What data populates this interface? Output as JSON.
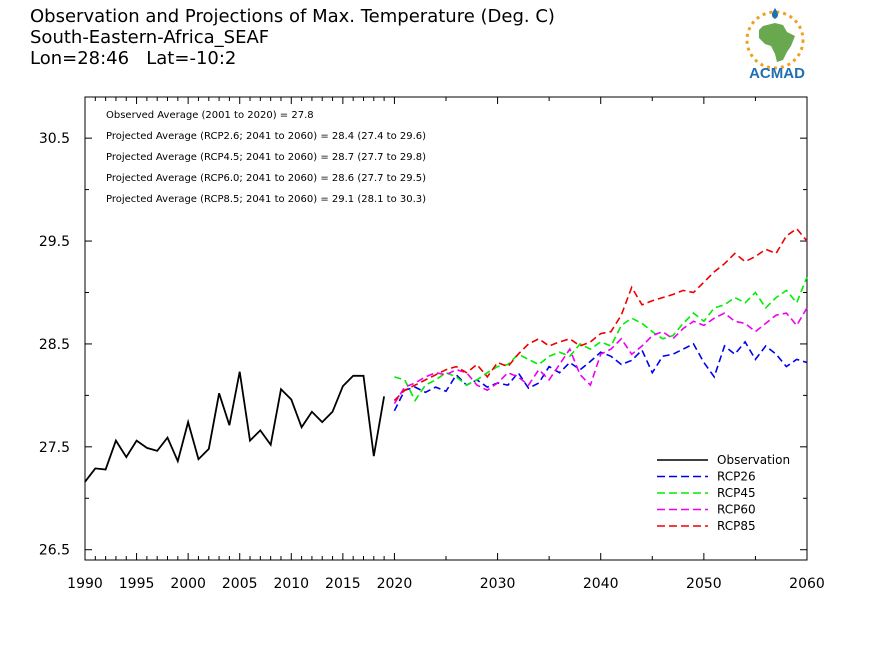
{
  "header": {
    "title": "Observation and Projections of Max. Temperature (Deg. C)",
    "region": "South-Eastern-Africa_SEAF",
    "location": "Lon=28:46   Lat=-10:2"
  },
  "logo": {
    "text": "ACMAD",
    "colors": {
      "africa": "#6aa84f",
      "sun": "#f0a020",
      "text": "#1f6fb2"
    }
  },
  "annotations": [
    "Observed Average (2001 to 2020) = 27.8",
    "Projected Average (RCP2.6; 2041 to 2060) = 28.4 (27.4 to 29.6)",
    "Projected Average (RCP4.5; 2041 to 2060) = 28.7 (27.7 to 29.8)",
    "Projected Average (RCP6.0; 2041 to 2060) = 28.6 (27.7 to 29.5)",
    "Projected Average (RCP8.5; 2041 to 2060) = 29.1 (28.1 to 30.3)"
  ],
  "chart_data": {
    "type": "line",
    "xlim": [
      1990,
      2060
    ],
    "ylim": [
      26.4,
      30.9
    ],
    "grid": false,
    "legend_position": "bottom-right",
    "x_ticks": [
      {
        "value": 1990,
        "label": "1990"
      },
      {
        "value": 1995,
        "label": "1995"
      },
      {
        "value": 2000,
        "label": "2000"
      },
      {
        "value": 2005,
        "label": "2005"
      },
      {
        "value": 2010,
        "label": "2010"
      },
      {
        "value": 2015,
        "label": "2015"
      },
      {
        "value": 2020,
        "label": "2020"
      },
      {
        "value": 2030,
        "label": "2030"
      },
      {
        "value": 2040,
        "label": "2040"
      },
      {
        "value": 2050,
        "label": "2050"
      },
      {
        "value": 2060,
        "label": "2060"
      }
    ],
    "y_ticks": [
      {
        "value": 26.5,
        "label": "26.5"
      },
      {
        "value": 27.5,
        "label": "27.5"
      },
      {
        "value": 28.5,
        "label": "28.5"
      },
      {
        "value": 29.5,
        "label": "29.5"
      },
      {
        "value": 30.5,
        "label": "30.5"
      }
    ],
    "series": [
      {
        "name": "Observation",
        "color": "#000000",
        "dashed": false,
        "x": [
          1990,
          1991,
          1992,
          1993,
          1994,
          1995,
          1996,
          1997,
          1998,
          1999,
          2000,
          2001,
          2002,
          2003,
          2004,
          2005,
          2006,
          2007,
          2008,
          2009,
          2010,
          2011,
          2012,
          2013,
          2014,
          2015,
          2016,
          2017,
          2018,
          2019
        ],
        "y": [
          27.16,
          27.29,
          27.28,
          27.56,
          27.4,
          27.56,
          27.49,
          27.46,
          27.59,
          27.36,
          27.74,
          27.38,
          27.48,
          28.02,
          27.71,
          28.23,
          27.56,
          27.66,
          27.52,
          28.06,
          27.96,
          27.69,
          27.84,
          27.74,
          27.84,
          28.09,
          28.19,
          28.19,
          27.41,
          27.99
        ]
      },
      {
        "name": "RCP26",
        "color": "#0000ee",
        "dashed": true,
        "x": [
          2020,
          2021,
          2022,
          2023,
          2024,
          2025,
          2026,
          2027,
          2028,
          2029,
          2030,
          2031,
          2032,
          2033,
          2034,
          2035,
          2036,
          2037,
          2038,
          2039,
          2040,
          2041,
          2042,
          2043,
          2044,
          2045,
          2046,
          2047,
          2048,
          2049,
          2050,
          2051,
          2052,
          2053,
          2054,
          2055,
          2056,
          2057,
          2058,
          2059,
          2060
        ],
        "y": [
          27.85,
          28.05,
          28.08,
          28.03,
          28.08,
          28.04,
          28.2,
          28.1,
          28.15,
          28.08,
          28.12,
          28.1,
          28.22,
          28.07,
          28.12,
          28.28,
          28.22,
          28.32,
          28.25,
          28.33,
          28.42,
          28.38,
          28.3,
          28.34,
          28.44,
          28.22,
          28.38,
          28.4,
          28.45,
          28.5,
          28.32,
          28.18,
          28.48,
          28.4,
          28.52,
          28.35,
          28.48,
          28.4,
          28.28,
          28.35,
          28.32
        ]
      },
      {
        "name": "RCP45",
        "color": "#00ee00",
        "dashed": true,
        "x": [
          2020,
          2021,
          2022,
          2023,
          2024,
          2025,
          2026,
          2027,
          2028,
          2029,
          2030,
          2031,
          2032,
          2033,
          2034,
          2035,
          2036,
          2037,
          2038,
          2039,
          2040,
          2041,
          2042,
          2043,
          2044,
          2045,
          2046,
          2047,
          2048,
          2049,
          2050,
          2051,
          2052,
          2053,
          2054,
          2055,
          2056,
          2057,
          2058,
          2059,
          2060
        ],
        "y": [
          28.18,
          28.15,
          27.95,
          28.1,
          28.15,
          28.22,
          28.18,
          28.1,
          28.15,
          28.22,
          28.28,
          28.3,
          28.4,
          28.35,
          28.3,
          28.38,
          28.42,
          28.38,
          28.5,
          28.45,
          28.52,
          28.48,
          28.68,
          28.75,
          28.7,
          28.62,
          28.55,
          28.58,
          28.7,
          28.8,
          28.72,
          28.85,
          28.88,
          28.95,
          28.9,
          29.0,
          28.85,
          28.95,
          29.02,
          28.9,
          29.15
        ]
      },
      {
        "name": "RCP60",
        "color": "#ee00ee",
        "dashed": true,
        "x": [
          2020,
          2021,
          2022,
          2023,
          2024,
          2025,
          2026,
          2027,
          2028,
          2029,
          2030,
          2031,
          2032,
          2033,
          2034,
          2035,
          2036,
          2037,
          2038,
          2039,
          2040,
          2041,
          2042,
          2043,
          2044,
          2045,
          2046,
          2047,
          2048,
          2049,
          2050,
          2051,
          2052,
          2053,
          2054,
          2055,
          2056,
          2057,
          2058,
          2059,
          2060
        ],
        "y": [
          27.92,
          28.08,
          28.12,
          28.18,
          28.22,
          28.2,
          28.25,
          28.22,
          28.1,
          28.05,
          28.12,
          28.22,
          28.18,
          28.1,
          28.25,
          28.15,
          28.3,
          28.45,
          28.2,
          28.1,
          28.4,
          28.45,
          28.55,
          28.4,
          28.48,
          28.58,
          28.62,
          28.55,
          28.65,
          28.72,
          28.68,
          28.75,
          28.8,
          28.72,
          28.7,
          28.62,
          28.7,
          28.78,
          28.8,
          28.68,
          28.85
        ]
      },
      {
        "name": "RCP85",
        "color": "#ee0000",
        "dashed": true,
        "x": [
          2020,
          2021,
          2022,
          2023,
          2024,
          2025,
          2026,
          2027,
          2028,
          2029,
          2030,
          2031,
          2032,
          2033,
          2034,
          2035,
          2036,
          2037,
          2038,
          2039,
          2040,
          2041,
          2042,
          2043,
          2044,
          2045,
          2046,
          2047,
          2048,
          2049,
          2050,
          2051,
          2052,
          2053,
          2054,
          2055,
          2056,
          2057,
          2058,
          2059,
          2060
        ],
        "y": [
          27.95,
          28.05,
          28.1,
          28.15,
          28.2,
          28.25,
          28.28,
          28.22,
          28.3,
          28.18,
          28.32,
          28.28,
          28.4,
          28.5,
          28.55,
          28.48,
          28.52,
          28.55,
          28.48,
          28.52,
          28.6,
          28.62,
          28.78,
          29.05,
          28.88,
          28.92,
          28.95,
          28.98,
          29.02,
          29.0,
          29.1,
          29.2,
          29.28,
          29.38,
          29.3,
          29.35,
          29.42,
          29.38,
          29.55,
          29.62,
          29.5
        ]
      }
    ]
  }
}
